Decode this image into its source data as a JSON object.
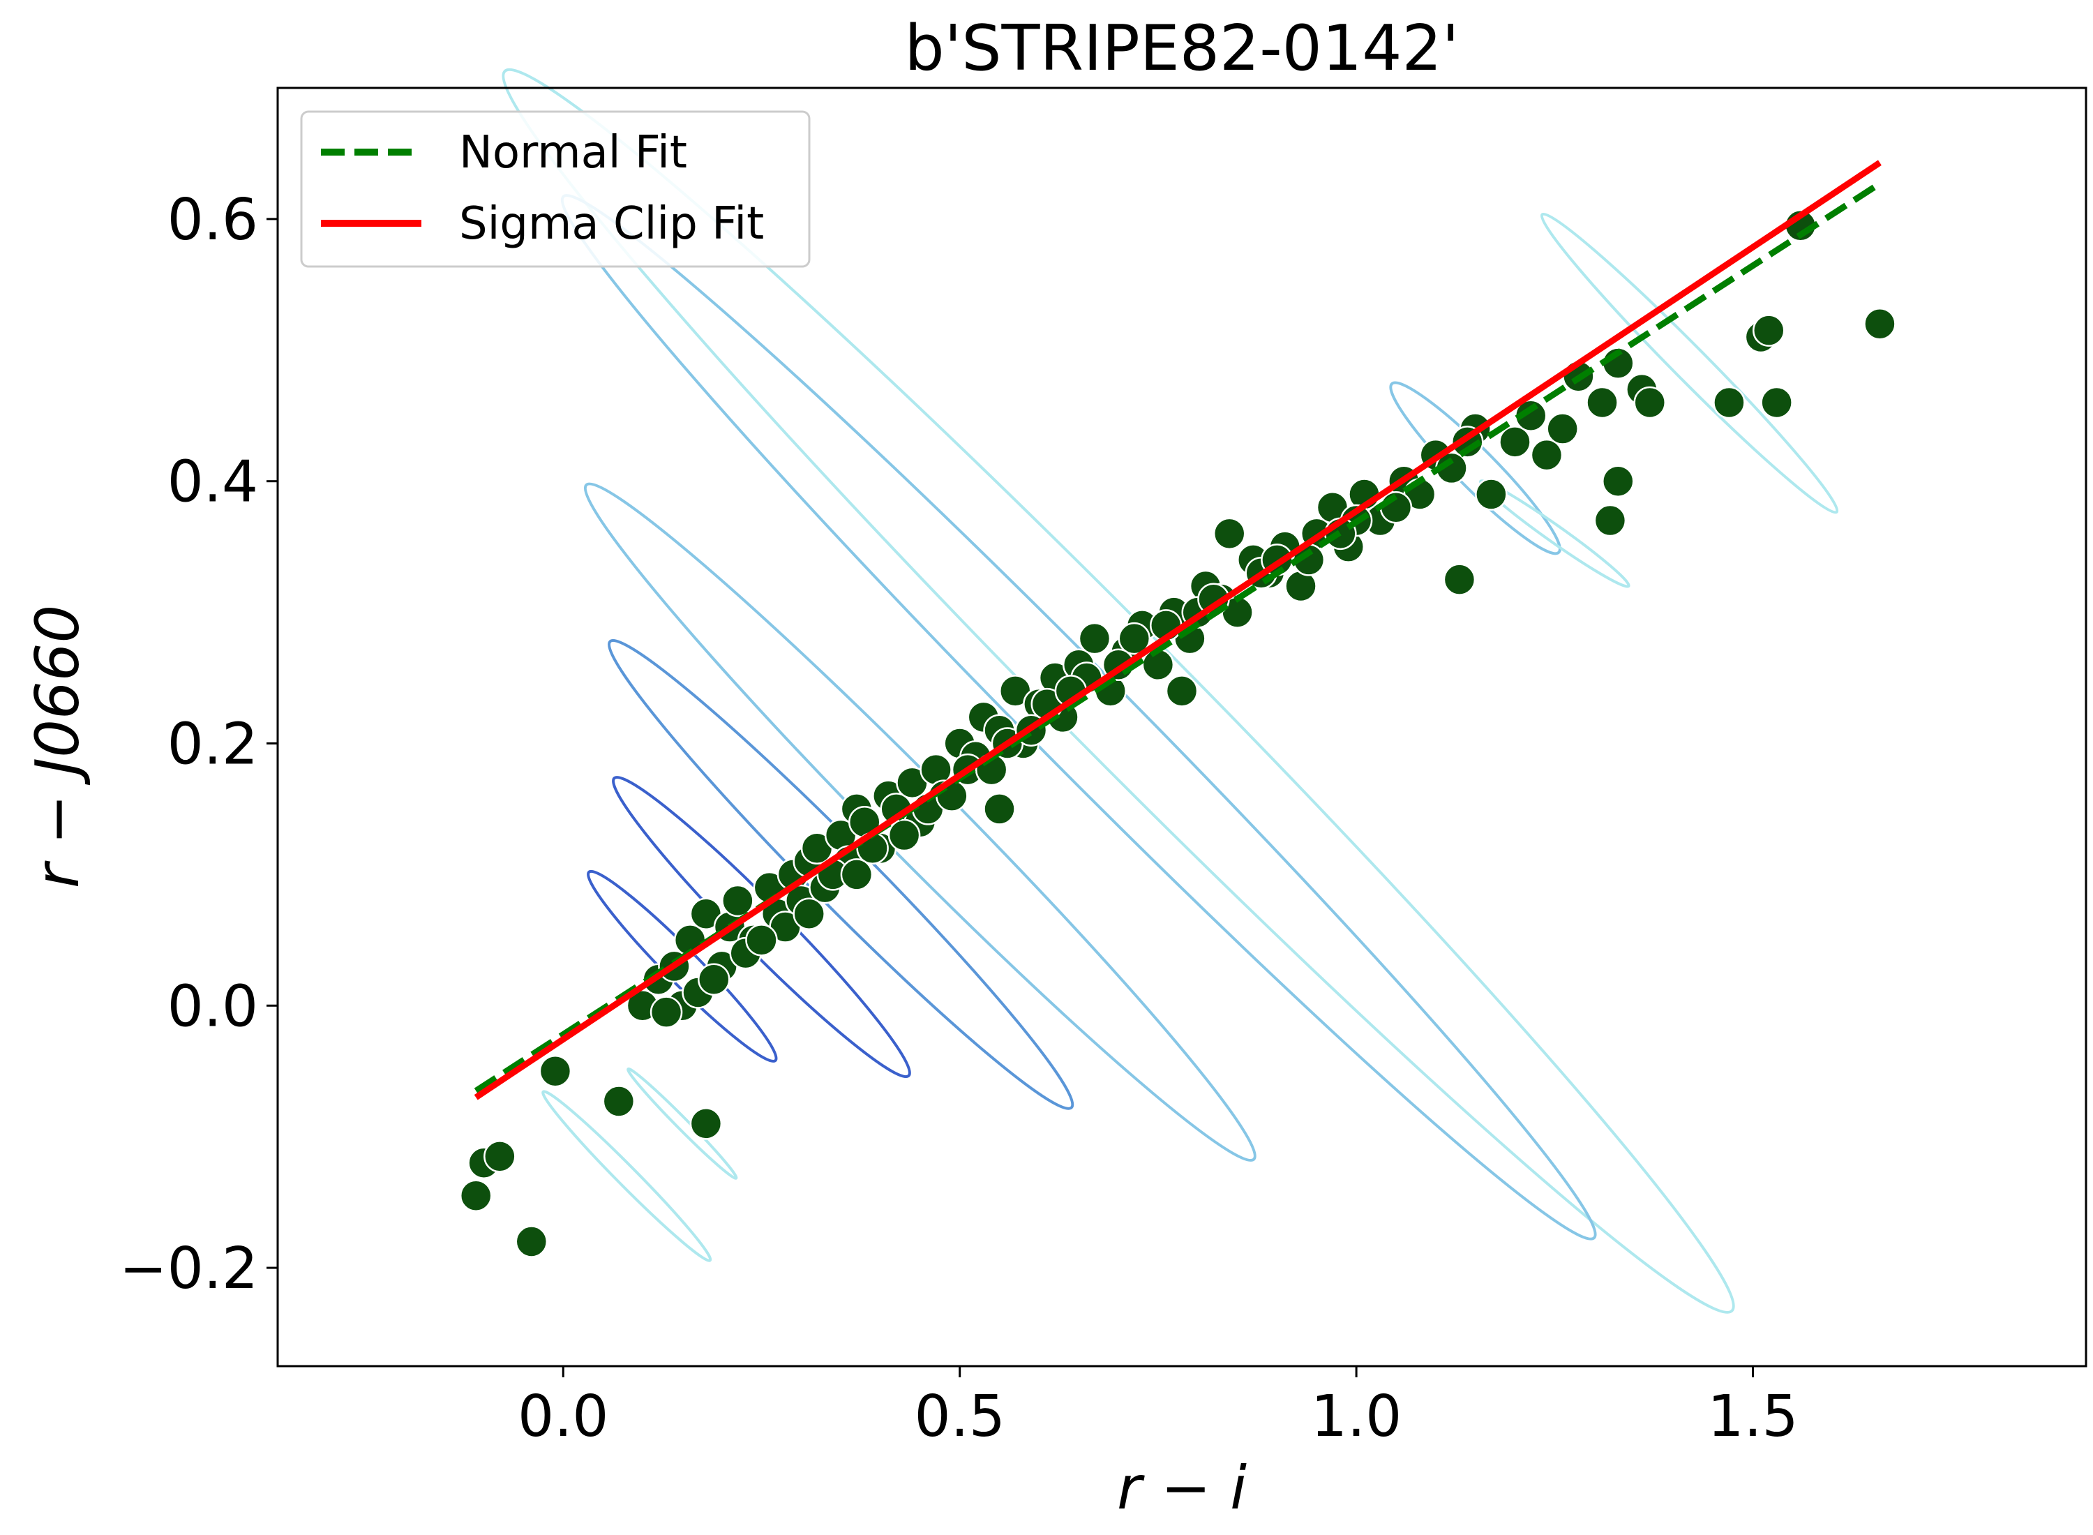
{
  "chart_data": {
    "type": "scatter",
    "title": "b'STRIPE82-0142'",
    "xlabel": "r − i",
    "ylabel": "r − J0660",
    "xlim": [
      -0.36,
      1.92
    ],
    "ylim": [
      -0.275,
      0.7
    ],
    "xticks": [
      0.0,
      0.5,
      1.0,
      1.5
    ],
    "xtick_labels": [
      "0.0",
      "0.5",
      "1.0",
      "1.5"
    ],
    "yticks": [
      -0.2,
      0.0,
      0.2,
      0.4,
      0.6
    ],
    "ytick_labels": [
      "−0.2",
      "0.0",
      "0.2",
      "0.4",
      "0.6"
    ],
    "grid": false,
    "legend_position": "top-left",
    "legend": [
      {
        "label": "Normal Fit",
        "style": "dashed",
        "color": "#007f00"
      },
      {
        "label": "Sigma Clip Fit",
        "style": "solid",
        "color": "#ff0000"
      }
    ],
    "point_color": "#0d4f0d",
    "contour_colors": [
      "#aee8ee",
      "#86c6e6",
      "#5a96d8",
      "#3a60cc"
    ],
    "series": [
      {
        "name": "Normal Fit",
        "type": "line",
        "x": [
          -0.11,
          1.66
        ],
        "y": [
          -0.065,
          0.627
        ]
      },
      {
        "name": "Sigma Clip Fit",
        "type": "line",
        "x": [
          -0.11,
          1.66
        ],
        "y": [
          -0.07,
          0.643
        ]
      },
      {
        "type": "scatter",
        "x": [
          -0.11,
          -0.1,
          -0.08,
          -0.04,
          -0.01,
          0.07,
          0.18,
          0.1,
          0.12,
          0.14,
          0.15,
          0.16,
          0.18,
          0.2,
          0.21,
          0.22,
          0.24,
          0.26,
          0.27,
          0.29,
          0.3,
          0.31,
          0.32,
          0.33,
          0.35,
          0.36,
          0.37,
          0.38,
          0.4,
          0.41,
          0.42,
          0.44,
          0.45,
          0.47,
          0.48,
          0.5,
          0.52,
          0.53,
          0.55,
          0.57,
          0.58,
          0.6,
          0.62,
          0.63,
          0.65,
          0.67,
          0.69,
          0.71,
          0.73,
          0.75,
          0.77,
          0.79,
          0.81,
          0.83,
          0.85,
          0.87,
          0.89,
          0.91,
          0.93,
          0.95,
          0.97,
          0.99,
          1.01,
          1.03,
          1.06,
          1.1,
          1.12,
          1.15,
          1.17,
          1.2,
          1.22,
          1.24,
          1.26,
          1.28,
          1.31,
          1.33,
          1.36,
          1.37,
          1.13,
          1.32,
          1.33,
          1.47,
          1.51,
          1.52,
          1.53,
          1.56,
          1.66,
          0.55,
          0.78,
          0.84,
          0.17,
          0.23,
          0.28,
          0.34,
          0.39,
          0.46,
          0.51,
          0.56,
          0.61,
          0.66,
          0.72,
          0.8,
          0.88,
          0.94,
          1.0,
          1.08,
          1.14,
          0.13,
          0.19,
          0.25,
          0.31,
          0.37,
          0.43,
          0.49,
          0.54,
          0.59,
          0.64,
          0.7,
          0.76,
          0.82,
          0.9,
          0.98,
          1.05
        ],
        "y": [
          -0.145,
          -0.12,
          -0.115,
          -0.18,
          -0.05,
          -0.073,
          -0.09,
          0.0,
          0.02,
          0.03,
          0.0,
          0.05,
          0.07,
          0.03,
          0.06,
          0.08,
          0.05,
          0.09,
          0.07,
          0.1,
          0.08,
          0.11,
          0.12,
          0.09,
          0.13,
          0.11,
          0.15,
          0.14,
          0.12,
          0.16,
          0.15,
          0.17,
          0.14,
          0.18,
          0.16,
          0.2,
          0.19,
          0.22,
          0.21,
          0.24,
          0.2,
          0.23,
          0.25,
          0.22,
          0.26,
          0.28,
          0.24,
          0.27,
          0.29,
          0.26,
          0.3,
          0.28,
          0.32,
          0.31,
          0.3,
          0.34,
          0.33,
          0.35,
          0.32,
          0.36,
          0.38,
          0.35,
          0.39,
          0.37,
          0.4,
          0.42,
          0.41,
          0.44,
          0.39,
          0.43,
          0.45,
          0.42,
          0.44,
          0.48,
          0.46,
          0.49,
          0.47,
          0.46,
          0.325,
          0.37,
          0.4,
          0.46,
          0.51,
          0.515,
          0.46,
          0.595,
          0.52,
          0.15,
          0.24,
          0.36,
          0.01,
          0.04,
          0.06,
          0.1,
          0.12,
          0.15,
          0.18,
          0.2,
          0.23,
          0.25,
          0.28,
          0.3,
          0.33,
          0.34,
          0.37,
          0.39,
          0.43,
          -0.005,
          0.02,
          0.05,
          0.07,
          0.1,
          0.13,
          0.16,
          0.18,
          0.21,
          0.24,
          0.26,
          0.29,
          0.31,
          0.34,
          0.36,
          0.38
        ]
      }
    ]
  }
}
